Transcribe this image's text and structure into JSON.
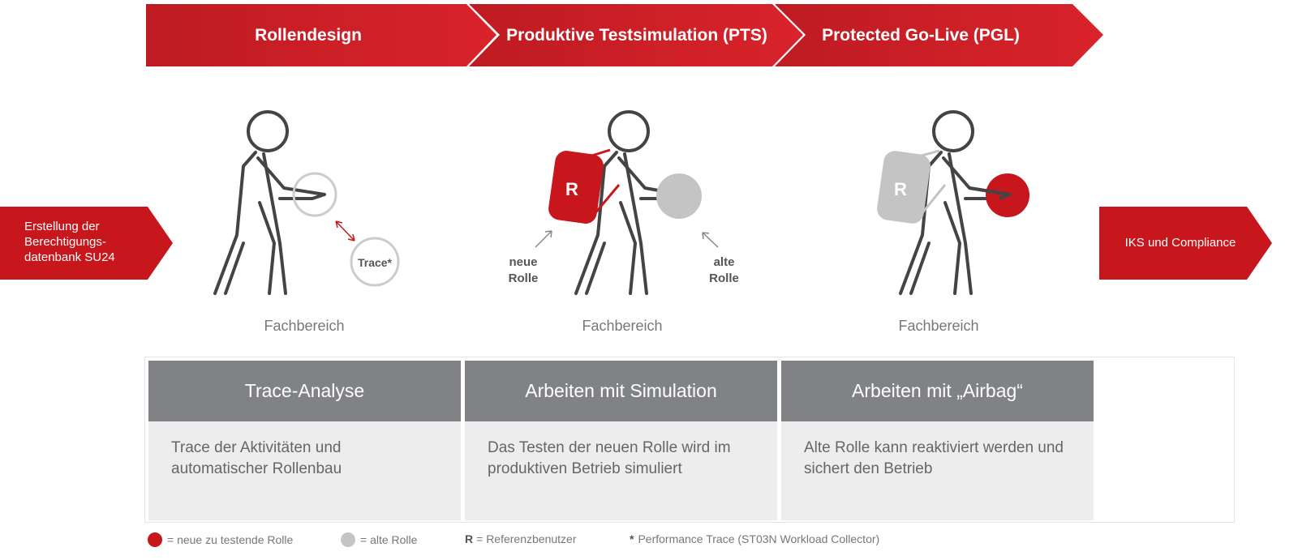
{
  "phases": [
    {
      "label": "Rollendesign"
    },
    {
      "label": "Produktive Testsimulation (PTS)"
    },
    {
      "label": "Protected Go-Live (PGL)"
    }
  ],
  "input_arrow": "Erstellung der Berechtigungs-datenbank SU24",
  "output_arrow": "IKS und Compliance",
  "figures": [
    {
      "caption": "Fachbereich",
      "trace_label": "Trace*"
    },
    {
      "caption": "Fachbereich",
      "backpack_letter": "R",
      "new_role_label": "neue Rolle",
      "old_role_label": "alte Rolle"
    },
    {
      "caption": "Fachbereich",
      "backpack_letter": "R"
    }
  ],
  "columns": [
    {
      "title": "Trace-Analyse",
      "text": "Trace der Aktivitäten und automatischer Rollenbau"
    },
    {
      "title": "Arbeiten mit Simulation",
      "text": "Das Testen der neuen Rolle wird im produktiven Betrieb simuliert"
    },
    {
      "title": "Arbeiten mit „Airbag“",
      "text": "Alte Rolle kann reaktiviert werden und sichert den Betrieb"
    }
  ],
  "legend": {
    "new_role": "= neue zu testende Rolle",
    "old_role": "= alte Rolle",
    "r_key": "R",
    "r_text": "= Referenzbenutzer",
    "star_key": "*",
    "star_text": "Performance Trace (ST03N Workload Collector)"
  },
  "colors": {
    "red": "#c8161d",
    "gray_circle": "#c4c4c4",
    "header_gray": "#808285",
    "body_gray": "#ededed"
  }
}
